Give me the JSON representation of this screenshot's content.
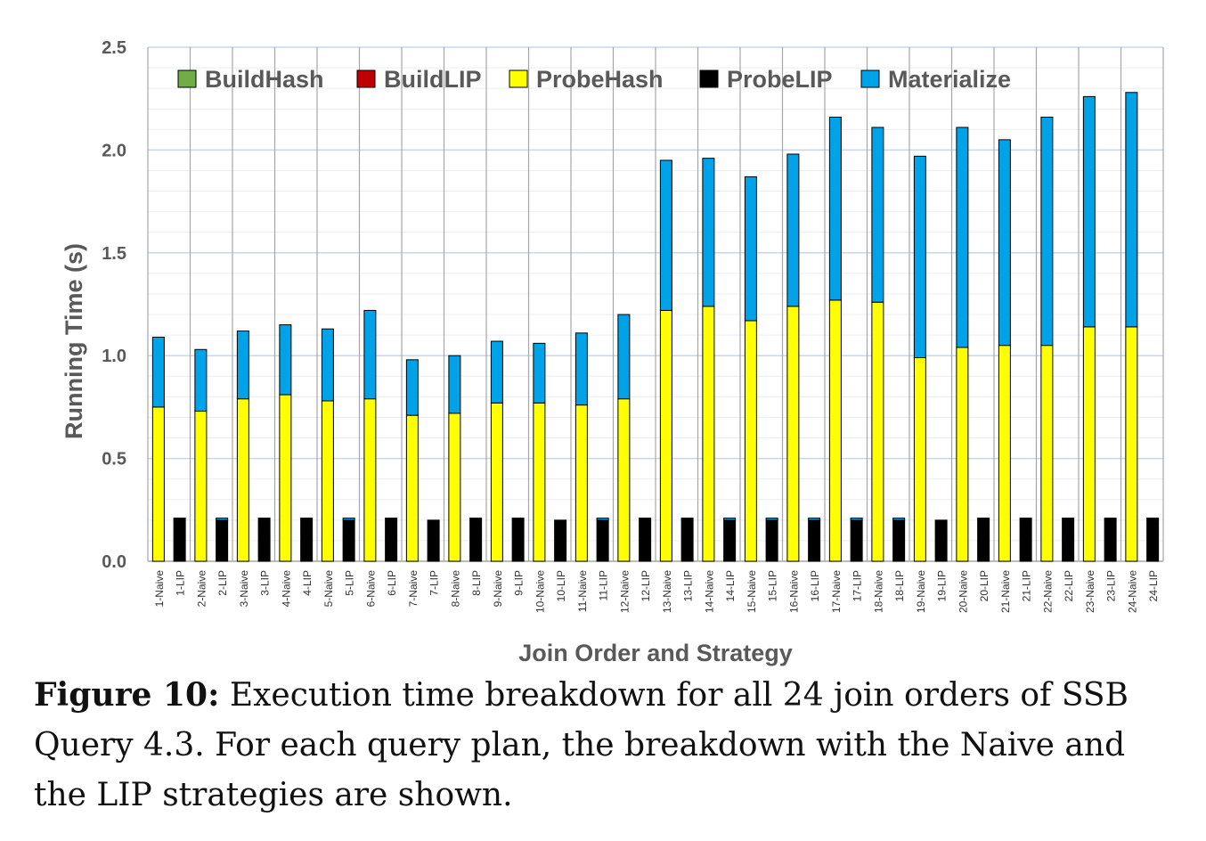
{
  "chart_data": {
    "type": "stacked-bar",
    "ylabel": "Running Time (s)",
    "xlabel": "Join Order and Strategy",
    "ylim": [
      0,
      2.5
    ],
    "yticks": [
      "0.0",
      "0.5",
      "1.0",
      "1.5",
      "2.0",
      "2.5"
    ],
    "grid": true,
    "legend_position": "top",
    "categories": [
      "1-Naive",
      "1-LIP",
      "2-Naive",
      "2-LIP",
      "3-Naive",
      "3-LIP",
      "4-Naive",
      "4-LIP",
      "5-Naive",
      "5-LIP",
      "6-Naive",
      "6-LIP",
      "7-Naive",
      "7-LIP",
      "8-Naive",
      "8-LIP",
      "9-Naive",
      "9-LIP",
      "10-Naive",
      "10-LIP",
      "11-Naive",
      "11-LIP",
      "12-Naive",
      "12-LIP",
      "13-Naive",
      "13-LIP",
      "14-Naive",
      "14-LIP",
      "15-Naive",
      "15-LIP",
      "16-Naive",
      "16-LIP",
      "17-Naive",
      "17-LIP",
      "18-Naive",
      "18-LIP",
      "19-Naive",
      "19-LIP",
      "20-Naive",
      "20-LIP",
      "21-Naive",
      "21-LIP",
      "22-Naive",
      "22-LIP",
      "23-Naive",
      "23-LIP",
      "24-Naive",
      "24-LIP"
    ],
    "series": [
      {
        "name": "BuildHash",
        "color": "#70ad47",
        "values": [
          0,
          0,
          0,
          0,
          0,
          0,
          0,
          0,
          0,
          0,
          0,
          0,
          0,
          0,
          0,
          0,
          0,
          0,
          0,
          0,
          0,
          0,
          0,
          0,
          0,
          0,
          0,
          0,
          0,
          0,
          0,
          0,
          0,
          0,
          0,
          0,
          0,
          0,
          0,
          0,
          0,
          0,
          0,
          0,
          0,
          0,
          0,
          0
        ]
      },
      {
        "name": "BuildLIP",
        "color": "#c00000",
        "values": [
          0,
          0,
          0,
          0,
          0,
          0,
          0,
          0,
          0,
          0,
          0,
          0,
          0,
          0,
          0,
          0,
          0,
          0,
          0,
          0,
          0,
          0,
          0,
          0,
          0,
          0,
          0,
          0,
          0,
          0,
          0,
          0,
          0,
          0,
          0,
          0,
          0,
          0,
          0,
          0,
          0,
          0,
          0,
          0,
          0,
          0,
          0,
          0
        ]
      },
      {
        "name": "ProbeHash",
        "color": "#ffff00",
        "values": [
          0.75,
          0,
          0.73,
          0,
          0.79,
          0,
          0.81,
          0,
          0.78,
          0,
          0.79,
          0,
          0.71,
          0,
          0.72,
          0,
          0.77,
          0,
          0.77,
          0,
          0.76,
          0,
          0.79,
          0,
          1.22,
          0,
          1.24,
          0,
          1.17,
          0,
          1.24,
          0,
          1.27,
          0,
          1.26,
          0,
          0.99,
          0,
          1.04,
          0,
          1.05,
          0,
          1.05,
          0,
          1.14,
          0,
          1.14,
          0
        ]
      },
      {
        "name": "ProbeLIP",
        "color": "#000000",
        "values": [
          0,
          0.21,
          0,
          0.2,
          0,
          0.21,
          0,
          0.21,
          0,
          0.2,
          0,
          0.21,
          0,
          0.2,
          0,
          0.21,
          0,
          0.21,
          0,
          0.2,
          0,
          0.2,
          0,
          0.21,
          0,
          0.21,
          0,
          0.2,
          0,
          0.2,
          0,
          0.2,
          0,
          0.2,
          0,
          0.2,
          0,
          0.2,
          0,
          0.21,
          0,
          0.21,
          0,
          0.21,
          0,
          0.21,
          0,
          0.21
        ]
      },
      {
        "name": "Materialize",
        "color": "#00a2e8",
        "values": [
          0.34,
          0,
          0.3,
          0.01,
          0.33,
          0,
          0.34,
          0,
          0.35,
          0.01,
          0.43,
          0,
          0.27,
          0,
          0.28,
          0,
          0.3,
          0,
          0.29,
          0,
          0.35,
          0.01,
          0.41,
          0,
          0.73,
          0,
          0.72,
          0.01,
          0.7,
          0.01,
          0.74,
          0.01,
          0.89,
          0.01,
          0.85,
          0.01,
          0.98,
          0,
          1.07,
          0,
          1.0,
          0,
          1.11,
          0,
          1.12,
          0,
          1.14,
          0
        ]
      }
    ]
  },
  "caption": {
    "label": "Figure 10:",
    "text": " Execution time breakdown for all 24 join orders of SSB Query 4.3. For each query plan, the breakdown with the Naive and the LIP strategies are shown."
  }
}
